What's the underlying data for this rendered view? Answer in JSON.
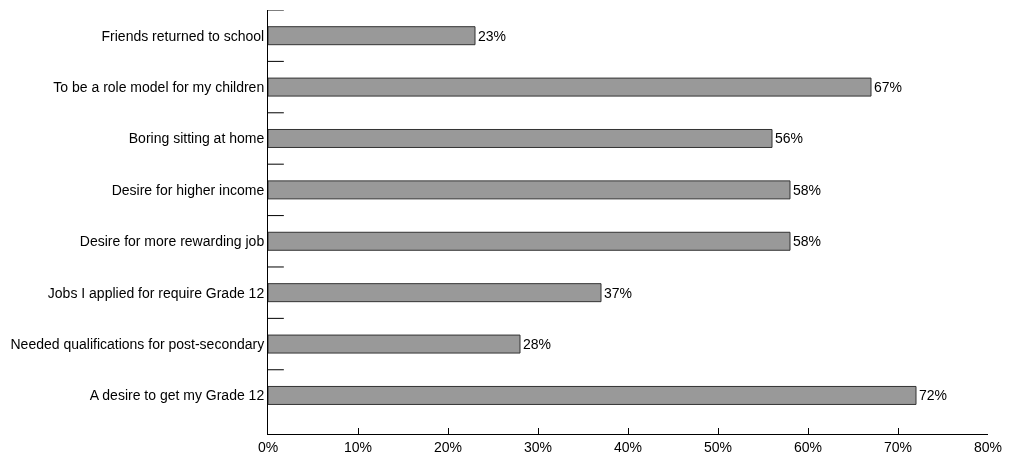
{
  "chart_data": {
    "type": "bar",
    "orientation": "horizontal",
    "categories": [
      "Friends returned to school",
      "To be a role model for my children",
      "Boring sitting at home",
      "Desire for higher income",
      "Desire for more rewarding job",
      "Jobs I applied for require Grade 12",
      "Needed qualifications for post-secondary",
      "A desire to get my Grade 12"
    ],
    "values": [
      23,
      67,
      56,
      58,
      58,
      37,
      28,
      72
    ],
    "value_labels": [
      "23%",
      "67%",
      "56%",
      "58%",
      "58%",
      "37%",
      "28%",
      "72%"
    ],
    "color": "#999999",
    "xlim": [
      0,
      80
    ],
    "xticks": [
      {
        "value": 0,
        "label": "0%"
      },
      {
        "value": 10,
        "label": "10%"
      },
      {
        "value": 20,
        "label": "20%"
      },
      {
        "value": 30,
        "label": "30%"
      },
      {
        "value": 40,
        "label": "40%"
      },
      {
        "value": 50,
        "label": "50%"
      },
      {
        "value": 60,
        "label": "60%"
      },
      {
        "value": 70,
        "label": "70%"
      },
      {
        "value": 80,
        "label": "80%"
      }
    ],
    "legend": false
  }
}
